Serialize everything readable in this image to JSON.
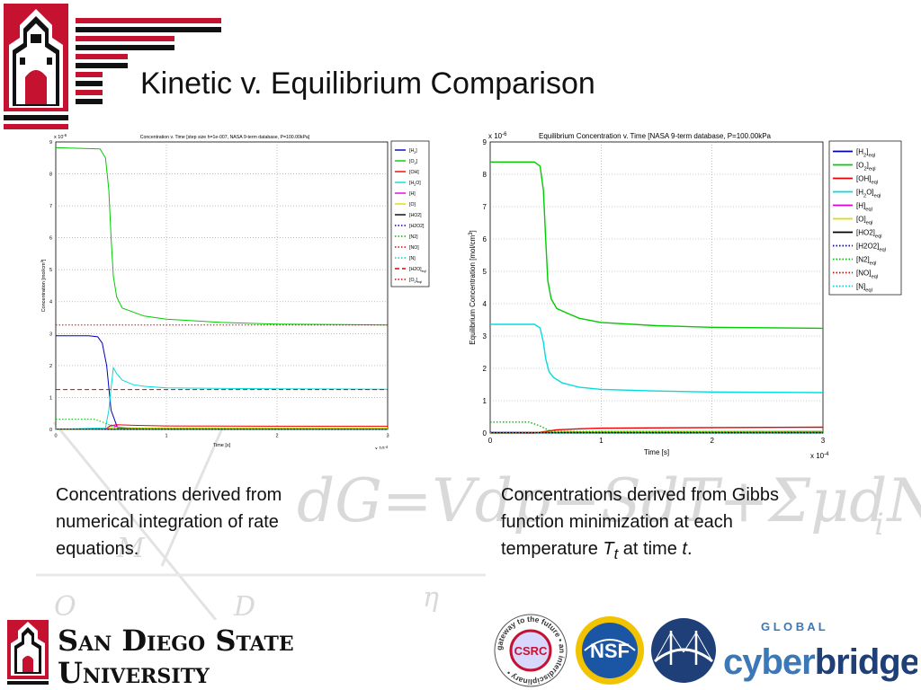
{
  "slide": {
    "title": "Kinetic v. Equilibrium Comparison",
    "caption_left": "Concentrations derived from numerical integration of rate equations.",
    "caption_right_parts": [
      "Concentrations derived from Gibbs function minimization at each temperature ",
      "T",
      "t",
      " at time ",
      "t",
      "."
    ],
    "background_formula": "dG=Vdp−SdT+ΣμdN",
    "background_sub": "i",
    "background_marks": [
      "M",
      "O",
      "D",
      "η"
    ]
  },
  "branding": {
    "university_line1": "San Diego State",
    "university_line2": "University",
    "csrc_label": "CSRC",
    "csrc_ring": "gateway to the future • an interdisciplinary •",
    "nsf_label": "NSF",
    "global_label": "G L O B A L",
    "cyber_label": "cyber",
    "bridges_label": "bridges",
    "colors": {
      "sdsu_red": "#c41230",
      "nsf_blue": "#1a56a4",
      "cyber_blue": "#3a78b8",
      "bridges_blue": "#1e3f78"
    }
  },
  "chart_data": [
    {
      "type": "line",
      "title": "Concentration v. Time [step size h=1e-007, NASA 9-term database, P=100.00kPa]",
      "xlabel": "Time [s]",
      "ylabel": "Concentration [mol/cm",
      "ylabel_sup": "3",
      "x_exponent": "x 10",
      "x_exponent_power": "-4",
      "y_exponent": "x 10",
      "y_exponent_power": "-6",
      "xlim": [
        0,
        3
      ],
      "ylim": [
        0,
        9
      ],
      "xticks": [
        "0",
        "1",
        "2",
        "3"
      ],
      "yticks": [
        "0",
        "1",
        "2",
        "3",
        "4",
        "5",
        "6",
        "7",
        "8",
        "9"
      ],
      "grid": true,
      "legend_position": "top-right",
      "series": [
        {
          "name": "[H",
          "sub": "2",
          "tail": "]",
          "color": "#0000bb",
          "dash": "solid",
          "x": [
            0,
            0.3,
            0.38,
            0.42,
            0.46,
            0.5,
            0.56,
            3
          ],
          "y": [
            2.93,
            2.93,
            2.9,
            2.7,
            2.0,
            0.6,
            0.03,
            0
          ]
        },
        {
          "name": "[O",
          "sub": "2",
          "tail": "]",
          "color": "#00cc00",
          "dash": "solid",
          "x": [
            0,
            0.4,
            0.45,
            0.48,
            0.5,
            0.52,
            0.55,
            0.6,
            0.8,
            1.0,
            1.5,
            2.0,
            3.0
          ],
          "y": [
            8.82,
            8.78,
            8.5,
            7.5,
            6.0,
            4.8,
            4.15,
            3.8,
            3.55,
            3.45,
            3.35,
            3.3,
            3.27
          ]
        },
        {
          "name": "[OH]",
          "sub": "",
          "tail": "",
          "color": "#ee0000",
          "dash": "solid",
          "x": [
            0,
            0.45,
            0.5,
            0.55,
            0.7,
            1.0,
            2.0,
            3.0
          ],
          "y": [
            0,
            0.01,
            0.12,
            0.15,
            0.13,
            0.11,
            0.1,
            0.1
          ]
        },
        {
          "name": "[H",
          "sub": "2",
          "tail": "O]",
          "color": "#00dddd",
          "dash": "solid",
          "x": [
            0,
            0.45,
            0.48,
            0.5,
            0.52,
            0.55,
            0.6,
            0.7,
            0.8,
            1.0,
            2.0,
            3.0
          ],
          "y": [
            0,
            0.05,
            0.6,
            1.3,
            1.93,
            1.75,
            1.55,
            1.4,
            1.35,
            1.3,
            1.27,
            1.26
          ]
        },
        {
          "name": "[H]",
          "sub": "",
          "tail": "",
          "color": "#dd00dd",
          "dash": "solid",
          "x": [
            0,
            0.45,
            0.5,
            0.56,
            0.7,
            1.0,
            3.0
          ],
          "y": [
            0,
            0.01,
            0.14,
            0.08,
            0.04,
            0.03,
            0.02
          ]
        },
        {
          "name": "[O]",
          "sub": "",
          "tail": "",
          "color": "#dddd00",
          "dash": "solid",
          "x": [
            0,
            0.45,
            0.52,
            0.7,
            1.0,
            3.0
          ],
          "y": [
            0,
            0.01,
            0.06,
            0.05,
            0.04,
            0.04
          ]
        },
        {
          "name": "[HO2]",
          "sub": "",
          "tail": "",
          "color": "#000000",
          "dash": "solid",
          "x": [
            0,
            3
          ],
          "y": [
            0.01,
            0.01
          ]
        },
        {
          "name": "[H2O2]",
          "sub": "",
          "tail": "",
          "color": "#0000cc",
          "dash": "dotted",
          "x": [
            0,
            3
          ],
          "y": [
            0.005,
            0.005
          ]
        },
        {
          "name": "[N2]",
          "sub": "",
          "tail": "",
          "color": "#00bb00",
          "dash": "dotted",
          "x": [
            0,
            0.35,
            0.45,
            0.55,
            3.0
          ],
          "y": [
            0.32,
            0.32,
            0.2,
            0.03,
            0.02
          ]
        },
        {
          "name": "[NO]",
          "sub": "",
          "tail": "",
          "color": "#dd0000",
          "dash": "dotted",
          "x": [
            0,
            3
          ],
          "y": [
            0.004,
            0.004
          ]
        },
        {
          "name": "[N]",
          "sub": "",
          "tail": "",
          "color": "#00cccc",
          "dash": "dotted",
          "x": [
            0,
            3
          ],
          "y": [
            0.002,
            0.002
          ]
        },
        {
          "name": "[H2O]",
          "sub": "eql",
          "tail": "",
          "color": "#dd0000",
          "dash": "dashed",
          "x": [
            0,
            3
          ],
          "y": [
            1.25,
            1.25
          ]
        },
        {
          "name": "[O",
          "sub": "2",
          "tail": "]",
          "sub2": "eql",
          "color": "#dd0000",
          "dash": "dotted",
          "x": [
            0,
            3
          ],
          "y": [
            3.27,
            3.27
          ]
        }
      ]
    },
    {
      "type": "line",
      "title": "Equilibrium Concentration v. Time [NASA 9-term database, P=100.00kPa",
      "xlabel": "Time [s]",
      "ylabel": "Equilibrium Concentration [mol/cm",
      "ylabel_sup": "3",
      "x_exponent": "x 10",
      "x_exponent_power": "-4",
      "y_exponent": "x 10",
      "y_exponent_power": "-6",
      "xlim": [
        0,
        3
      ],
      "ylim": [
        0,
        9
      ],
      "xticks": [
        "0",
        "1",
        "2",
        "3"
      ],
      "yticks": [
        "0",
        "1",
        "2",
        "3",
        "4",
        "5",
        "6",
        "7",
        "8",
        "9"
      ],
      "grid": true,
      "legend_position": "top-right",
      "series": [
        {
          "name": "[H",
          "sub": "2",
          "tail": "]",
          "sub2": "eql",
          "color": "#0000bb",
          "dash": "solid",
          "x": [
            0,
            3
          ],
          "y": [
            0.015,
            0.015
          ]
        },
        {
          "name": "[O",
          "sub": "2",
          "tail": "]",
          "sub2": "eql",
          "color": "#00cc00",
          "dash": "solid",
          "x": [
            0,
            0.4,
            0.45,
            0.48,
            0.5,
            0.52,
            0.55,
            0.6,
            0.8,
            1.0,
            1.5,
            2.0,
            3.0
          ],
          "y": [
            8.38,
            8.38,
            8.25,
            7.5,
            6.0,
            4.7,
            4.15,
            3.85,
            3.55,
            3.42,
            3.32,
            3.27,
            3.24
          ]
        },
        {
          "name": "[OH]",
          "sub": "",
          "tail": "",
          "sub2": "eql",
          "color": "#ee0000",
          "dash": "solid",
          "x": [
            0,
            0.4,
            0.5,
            0.6,
            0.8,
            1.0,
            2.0,
            3.0
          ],
          "y": [
            0,
            0.0,
            0.05,
            0.1,
            0.13,
            0.15,
            0.17,
            0.18
          ]
        },
        {
          "name": "[H",
          "sub": "2",
          "tail": "O]",
          "sub2": "eql",
          "color": "#00dddd",
          "dash": "solid",
          "x": [
            0,
            0.4,
            0.45,
            0.48,
            0.5,
            0.53,
            0.57,
            0.65,
            0.8,
            1.0,
            1.5,
            2.0,
            3.0
          ],
          "y": [
            3.36,
            3.36,
            3.25,
            2.8,
            2.3,
            1.9,
            1.72,
            1.55,
            1.42,
            1.35,
            1.3,
            1.27,
            1.25
          ]
        },
        {
          "name": "[H]",
          "sub": "",
          "tail": "",
          "sub2": "eql",
          "color": "#dd00dd",
          "dash": "solid",
          "x": [
            0,
            0.5,
            1.0,
            3.0
          ],
          "y": [
            0,
            0.02,
            0.04,
            0.05
          ]
        },
        {
          "name": "[O]",
          "sub": "",
          "tail": "",
          "sub2": "eql",
          "color": "#dddd00",
          "dash": "solid",
          "x": [
            0,
            0.5,
            1.0,
            3.0
          ],
          "y": [
            0,
            0.02,
            0.04,
            0.06
          ]
        },
        {
          "name": "[HO2]",
          "sub": "",
          "tail": "",
          "sub2": "eql",
          "color": "#000000",
          "dash": "solid",
          "x": [
            0,
            3
          ],
          "y": [
            0.01,
            0.01
          ]
        },
        {
          "name": "[H2O2]",
          "sub": "",
          "tail": "",
          "sub2": "eql",
          "color": "#0000cc",
          "dash": "dotted",
          "x": [
            0,
            3
          ],
          "y": [
            0.005,
            0.005
          ]
        },
        {
          "name": "[N2]",
          "sub": "",
          "tail": "",
          "sub2": "eql",
          "color": "#00bb00",
          "dash": "dotted",
          "x": [
            0,
            0.35,
            0.45,
            0.55,
            3.0
          ],
          "y": [
            0.34,
            0.34,
            0.22,
            0.05,
            0.04
          ]
        },
        {
          "name": "[NO]",
          "sub": "",
          "tail": "",
          "sub2": "eql",
          "color": "#dd0000",
          "dash": "dotted",
          "x": [
            0,
            3
          ],
          "y": [
            0.004,
            0.004
          ]
        },
        {
          "name": "[N]",
          "sub": "",
          "tail": "",
          "sub2": "eql",
          "color": "#00cccc",
          "dash": "dotted",
          "x": [
            0,
            3
          ],
          "y": [
            0.002,
            0.002
          ]
        }
      ]
    }
  ]
}
